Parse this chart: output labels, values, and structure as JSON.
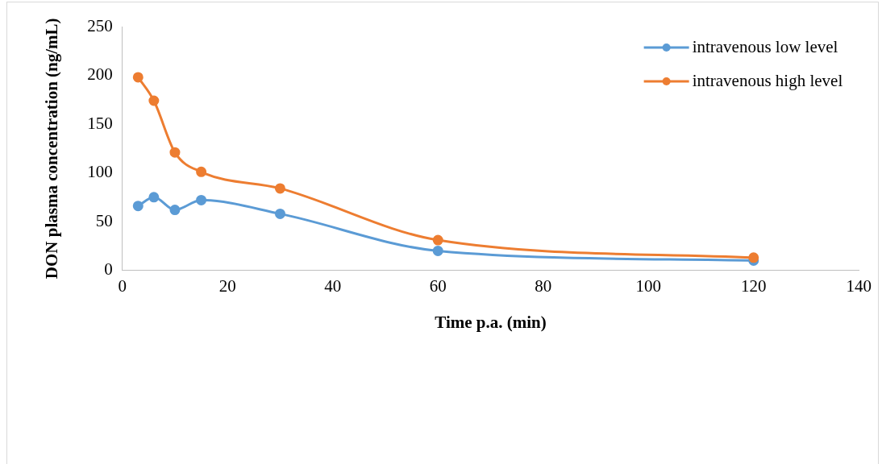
{
  "chart_data": {
    "type": "line",
    "xlabel": "Time p.a. (min)",
    "ylabel": "DON plasma concentration (ng/mL)",
    "x": [
      3,
      6,
      10,
      15,
      30,
      60,
      120
    ],
    "series": [
      {
        "name": "intravenous low level",
        "color": "#5b9bd5",
        "values": [
          66,
          75,
          62,
          72,
          58,
          20,
          10
        ]
      },
      {
        "name": "intravenous high level",
        "color": "#ed7d31",
        "values": [
          198,
          174,
          121,
          101,
          84,
          31,
          13
        ]
      }
    ],
    "xlim": [
      0,
      140
    ],
    "xticks": [
      0,
      20,
      40,
      60,
      80,
      100,
      120,
      140
    ],
    "ylim": [
      0,
      250
    ],
    "yticks": [
      0,
      50,
      100,
      150,
      200,
      250
    ],
    "grid": false,
    "legend": "top right",
    "marker": "circle",
    "line_style": "solid"
  }
}
